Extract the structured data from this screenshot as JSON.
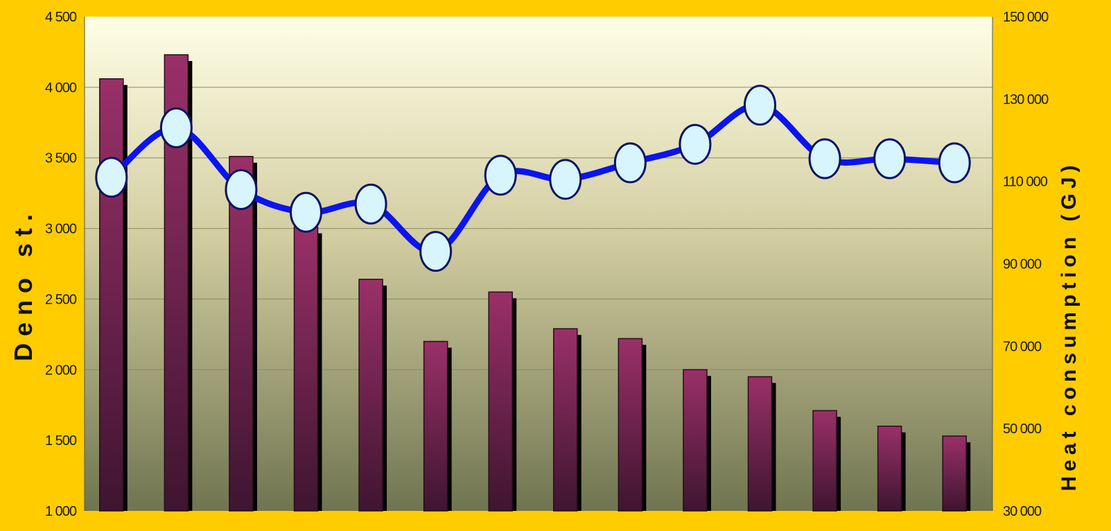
{
  "chart_data": {
    "type": "bar",
    "ylabel": "Deno st.",
    "y2label": "Heat consumption (GJ)",
    "ylim": [
      1000,
      4500
    ],
    "yticks": [
      1000,
      1500,
      2000,
      2500,
      3000,
      3500,
      4000,
      4500
    ],
    "ytick_labels": [
      "1 000",
      "1 500",
      "2 000",
      "2 500",
      "3 000",
      "3 500",
      "4 000",
      "4 500"
    ],
    "y2lim": [
      30000,
      150000
    ],
    "y2ticks": [
      30000,
      50000,
      70000,
      90000,
      110000,
      130000,
      150000
    ],
    "y2tick_labels": [
      "30 000",
      "50 000",
      "70 000",
      "90 000",
      "110 000",
      "130 000",
      "150 000"
    ],
    "grid": true,
    "series": [
      {
        "kind": "bar",
        "axis": "left",
        "color": "#8B2A5C",
        "values": [
          4060,
          4230,
          3510,
          3010,
          2640,
          2200,
          2550,
          2290,
          2220,
          2000,
          1950,
          1710,
          1600,
          1530
        ]
      },
      {
        "kind": "line",
        "axis": "right",
        "color": "#0A14F0",
        "marker_color": "#D8F4FC",
        "values": [
          111000,
          123000,
          108000,
          102500,
          104500,
          93000,
          111500,
          110500,
          114500,
          119000,
          128500,
          115500,
          115500,
          114500
        ]
      }
    ]
  }
}
